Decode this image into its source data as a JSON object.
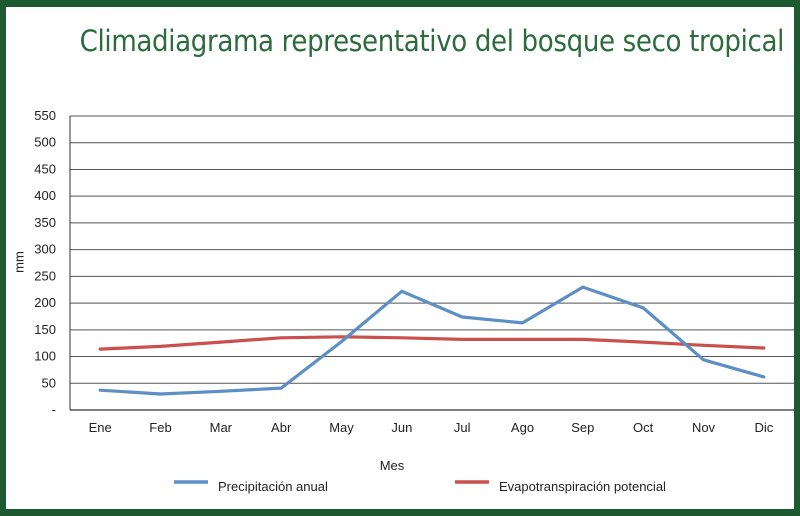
{
  "title": "Climadiagrama representativo del bosque seco tropical",
  "chart_data": {
    "type": "line",
    "title": "Climadiagrama representativo del bosque seco tropical",
    "xlabel": "Mes",
    "ylabel": "mm",
    "categories": [
      "Ene",
      "Feb",
      "Mar",
      "Abr",
      "May",
      "Jun",
      "Jul",
      "Ago",
      "Sep",
      "Oct",
      "Nov",
      "Dic"
    ],
    "yticks": [
      "-",
      "50",
      "100",
      "150",
      "200",
      "250",
      "300",
      "350",
      "400",
      "450",
      "500",
      "550"
    ],
    "ylim": [
      0,
      550
    ],
    "grid": true,
    "legend_position": "bottom",
    "series": [
      {
        "name": "Precipitación anual",
        "color": "#5b8fc6",
        "values": [
          37,
          30,
          35,
          41,
          128,
          222,
          174,
          163,
          230,
          191,
          94,
          62
        ]
      },
      {
        "name": "Evapotranspiración potencial",
        "color": "#c9504c",
        "values": [
          114,
          119,
          127,
          135,
          137,
          135,
          132,
          132,
          132,
          127,
          121,
          116
        ]
      }
    ]
  }
}
